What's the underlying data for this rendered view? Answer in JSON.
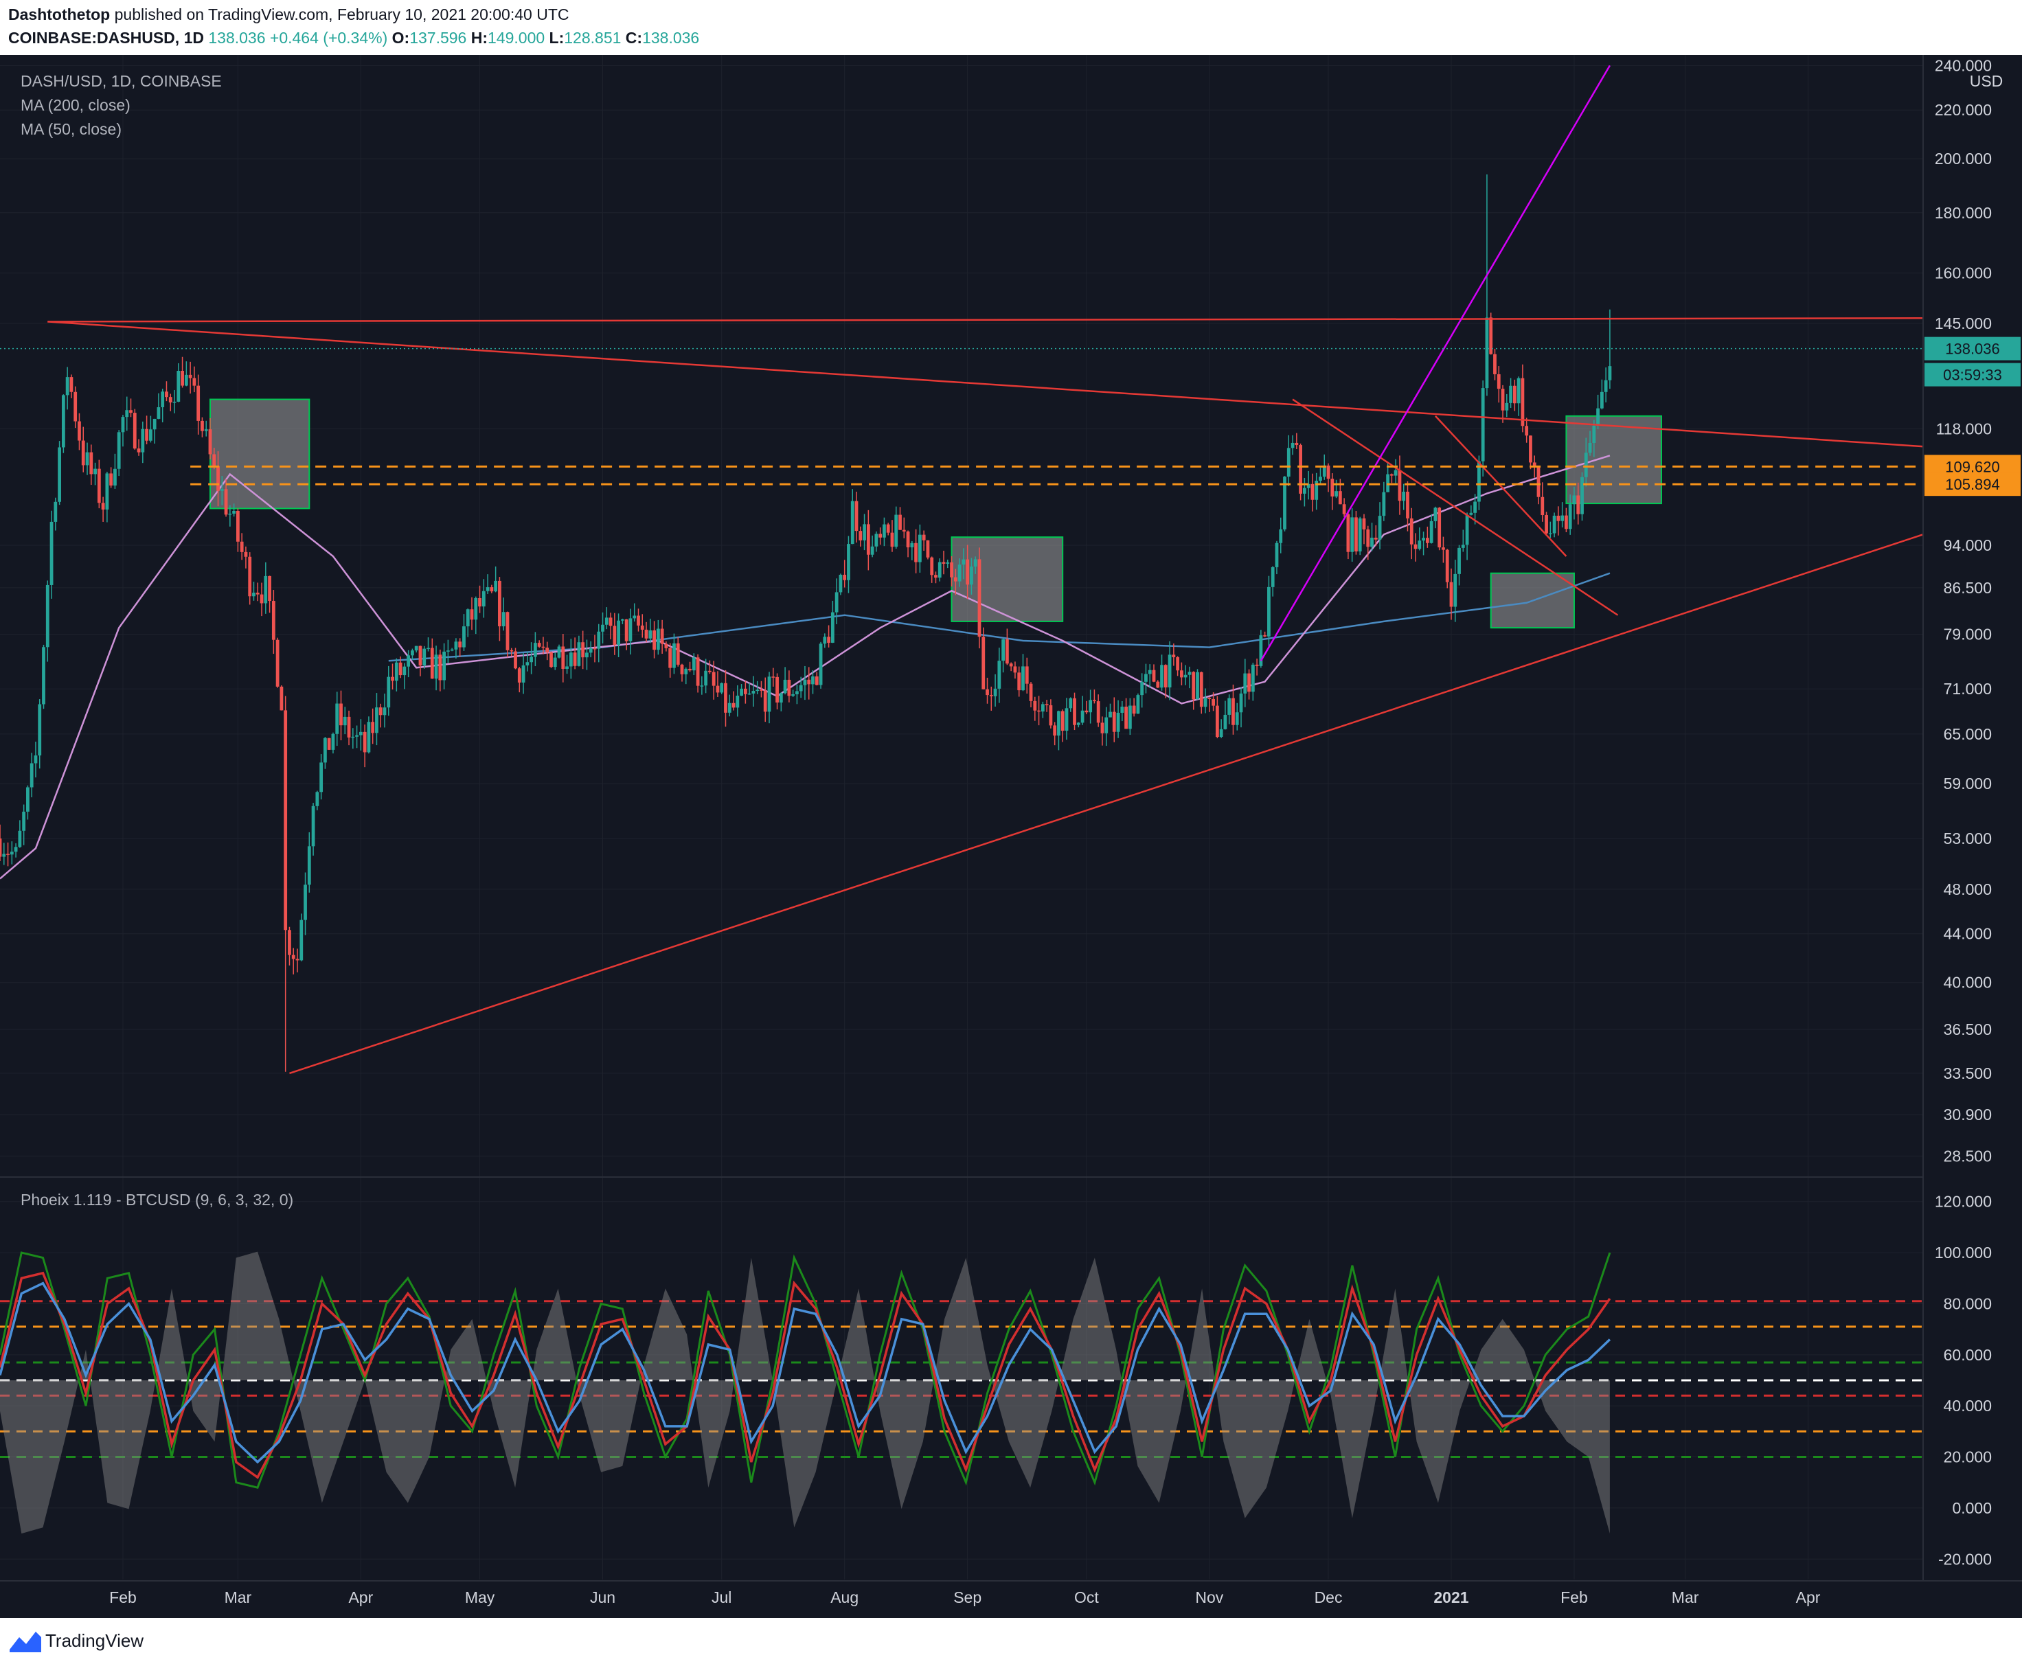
{
  "header": {
    "author": "Dashtothetop",
    "published": "published on TradingView.com, February 10, 2021 20:00:40 UTC",
    "symbol": "COINBASE:DASHUSD, 1D",
    "last": "138.036",
    "change": "+0.464 (+0.34%)",
    "open_label": "O:",
    "open": "137.596",
    "high_label": "H:",
    "high": "149.000",
    "low_label": "L:",
    "low": "128.851",
    "close_label": "C:",
    "close": "138.036"
  },
  "legend": {
    "title": "DASH/USD, 1D, COINBASE",
    "ma200": "MA (200, close)",
    "ma50": "MA (50, close)",
    "oscillator": "Phoeix 1.119 - BTCUSD (9, 6, 3, 32, 0)"
  },
  "price_tags": {
    "currency": "USD",
    "last": "138.036",
    "countdown": "03:59:33",
    "level_upper": "109.620",
    "level_lower": "105.894"
  },
  "footer": {
    "brand": "TradingView"
  },
  "colors": {
    "background": "#131722",
    "up": "#26a69a",
    "down": "#ef5350",
    "trendline": "#e53935",
    "fan_line": "#d500f9",
    "ma200": "#4a8bc2",
    "ma50": "#ce93d8",
    "level_dashed": "#f7931a",
    "box_border": "#00c853",
    "osc_green": "#1b8a1b",
    "osc_red": "#d32f2f",
    "osc_blue": "#4a90d9"
  },
  "chart_data": [
    {
      "type": "candlestick",
      "title": "DASH/USD, 1D, COINBASE",
      "y_scale": "log",
      "ylim": [
        27.5,
        245
      ],
      "x_ticks": [
        "Feb",
        "Mar",
        "Apr",
        "May",
        "Jun",
        "Jul",
        "Aug",
        "Sep",
        "Oct",
        "Nov",
        "Dec",
        "2021",
        "Feb",
        "Mar",
        "Apr"
      ],
      "x_range": [
        "2020-01-01",
        "2021-04-30"
      ],
      "y_ticks": [
        "240.000",
        "220.000",
        "200.000",
        "180.000",
        "160.000",
        "145.000",
        "118.000",
        "94.000",
        "86.500",
        "79.000",
        "71.000",
        "65.000",
        "59.000",
        "53.000",
        "48.000",
        "44.000",
        "40.000",
        "36.500",
        "33.500",
        "30.900",
        "28.500"
      ],
      "close_path": [
        [
          "2020-01-01",
          53
        ],
        [
          "2020-01-05",
          51
        ],
        [
          "2020-01-10",
          62
        ],
        [
          "2020-01-14",
          98
        ],
        [
          "2020-01-18",
          132
        ],
        [
          "2020-01-22",
          112
        ],
        [
          "2020-01-27",
          102
        ],
        [
          "2020-02-01",
          120
        ],
        [
          "2020-02-06",
          116
        ],
        [
          "2020-02-12",
          125
        ],
        [
          "2020-02-16",
          132
        ],
        [
          "2020-02-20",
          122
        ],
        [
          "2020-02-24",
          108
        ],
        [
          "2020-02-28",
          100
        ],
        [
          "2020-03-04",
          88
        ],
        [
          "2020-03-08",
          86
        ],
        [
          "2020-03-12",
          70
        ],
        [
          "2020-03-13",
          44
        ],
        [
          "2020-03-16",
          42
        ],
        [
          "2020-03-20",
          58
        ],
        [
          "2020-03-26",
          67
        ],
        [
          "2020-04-02",
          63
        ],
        [
          "2020-04-08",
          72
        ],
        [
          "2020-04-15",
          75
        ],
        [
          "2020-04-22",
          74
        ],
        [
          "2020-04-30",
          83
        ],
        [
          "2020-05-05",
          85
        ],
        [
          "2020-05-10",
          74
        ],
        [
          "2020-05-18",
          76
        ],
        [
          "2020-05-26",
          77
        ],
        [
          "2020-06-02",
          79
        ],
        [
          "2020-06-10",
          80
        ],
        [
          "2020-06-18",
          76
        ],
        [
          "2020-06-26",
          73
        ],
        [
          "2020-07-03",
          68
        ],
        [
          "2020-07-10",
          70
        ],
        [
          "2020-07-18",
          71
        ],
        [
          "2020-07-24",
          72
        ],
        [
          "2020-07-31",
          86
        ],
        [
          "2020-08-03",
          101
        ],
        [
          "2020-08-08",
          93
        ],
        [
          "2020-08-15",
          97
        ],
        [
          "2020-08-22",
          92
        ],
        [
          "2020-08-28",
          88
        ],
        [
          "2020-09-03",
          89
        ],
        [
          "2020-09-05",
          70
        ],
        [
          "2020-09-10",
          76
        ],
        [
          "2020-09-16",
          72
        ],
        [
          "2020-09-22",
          67
        ],
        [
          "2020-09-30",
          68
        ],
        [
          "2020-10-08",
          66
        ],
        [
          "2020-10-14",
          70
        ],
        [
          "2020-10-20",
          74
        ],
        [
          "2020-10-28",
          72
        ],
        [
          "2020-11-03",
          66
        ],
        [
          "2020-11-08",
          69
        ],
        [
          "2020-11-14",
          77
        ],
        [
          "2020-11-18",
          92
        ],
        [
          "2020-11-22",
          118
        ],
        [
          "2020-11-25",
          102
        ],
        [
          "2020-12-01",
          108
        ],
        [
          "2020-12-06",
          96
        ],
        [
          "2020-12-12",
          96
        ],
        [
          "2020-12-18",
          110
        ],
        [
          "2020-12-23",
          92
        ],
        [
          "2020-12-28",
          100
        ],
        [
          "2021-01-01",
          86
        ],
        [
          "2021-01-04",
          94
        ],
        [
          "2021-01-08",
          108
        ],
        [
          "2021-01-10",
          145
        ],
        [
          "2021-01-13",
          125
        ],
        [
          "2021-01-18",
          128
        ],
        [
          "2021-01-21",
          110
        ],
        [
          "2021-01-25",
          97
        ],
        [
          "2021-01-28",
          96
        ],
        [
          "2021-02-02",
          103
        ],
        [
          "2021-02-06",
          118
        ],
        [
          "2021-02-09",
          128
        ],
        [
          "2021-02-10",
          138.036
        ]
      ],
      "notable_wicks": [
        [
          "2020-03-13",
          33.6
        ],
        [
          "2021-01-10",
          194
        ],
        [
          "2021-02-10",
          149
        ]
      ],
      "ma_200": [
        [
          "2020-04-08",
          75
        ],
        [
          "2020-06-01",
          77
        ],
        [
          "2020-08-01",
          82
        ],
        [
          "2020-09-15",
          78
        ],
        [
          "2020-11-01",
          77
        ],
        [
          "2020-12-15",
          81
        ],
        [
          "2021-01-20",
          84
        ],
        [
          "2021-02-10",
          89
        ]
      ],
      "ma_50": [
        [
          "2020-01-01",
          49
        ],
        [
          "2020-01-10",
          52
        ],
        [
          "2020-01-31",
          80
        ],
        [
          "2020-02-28",
          108
        ],
        [
          "2020-03-25",
          92
        ],
        [
          "2020-04-15",
          74
        ],
        [
          "2020-05-15",
          76
        ],
        [
          "2020-06-15",
          78
        ],
        [
          "2020-07-15",
          70
        ],
        [
          "2020-08-10",
          80
        ],
        [
          "2020-08-28",
          86
        ],
        [
          "2020-09-25",
          78
        ],
        [
          "2020-10-25",
          69
        ],
        [
          "2020-11-15",
          72
        ],
        [
          "2020-12-15",
          96
        ],
        [
          "2021-01-10",
          104
        ],
        [
          "2021-02-10",
          112
        ]
      ],
      "trendlines": {
        "horizontal_resistance": [
          [
            "2020-01-13",
            145.5
          ],
          [
            "2021-04-30",
            146.5
          ]
        ],
        "falling_resistance": [
          [
            "2020-01-13",
            145.5
          ],
          [
            "2021-04-30",
            114
          ]
        ],
        "rising_support": [
          [
            "2020-03-14",
            33.5
          ],
          [
            "2021-04-30",
            96
          ]
        ],
        "descending_channel": [
          [
            "2020-11-22",
            125
          ],
          [
            "2021-02-12",
            82
          ]
        ],
        "descending_channel_2": [
          [
            "2020-12-28",
            121
          ],
          [
            "2021-01-30",
            92
          ]
        ],
        "fan_line": [
          [
            "2020-11-14",
            75
          ],
          [
            "2021-02-10",
            240
          ]
        ]
      },
      "levels": [
        109.62,
        105.894
      ],
      "boxes": [
        {
          "x": [
            "2020-02-23",
            "2020-03-19"
          ],
          "y": [
            101,
            125
          ]
        },
        {
          "x": [
            "2020-08-28",
            "2020-09-25"
          ],
          "y": [
            81,
            95.5
          ]
        },
        {
          "x": [
            "2021-01-11",
            "2021-02-01"
          ],
          "y": [
            80,
            89
          ]
        },
        {
          "x": [
            "2021-01-30",
            "2021-02-23"
          ],
          "y": [
            102,
            121
          ]
        }
      ],
      "last_price": 138.036,
      "currency": "USD"
    },
    {
      "type": "line",
      "title": "Phoeix 1.119 - BTCUSD (9, 6, 3, 32, 0)",
      "ylim": [
        -28,
        128
      ],
      "y_ticks": [
        "120.000",
        "100.000",
        "80.000",
        "60.000",
        "40.000",
        "20.000",
        "0.000",
        "-20.000"
      ],
      "levels": [
        {
          "value": 81,
          "color": "#d32f2f"
        },
        {
          "value": 71,
          "color": "#f7931a"
        },
        {
          "value": 57,
          "color": "#1b8a1b"
        },
        {
          "value": 50,
          "color": "#ffffff"
        },
        {
          "value": 44,
          "color": "#d32f2f"
        },
        {
          "value": 30,
          "color": "#f7931a"
        },
        {
          "value": 20,
          "color": "#1b8a1b"
        }
      ],
      "series": [
        {
          "name": "",
          "color": "#1b8a1b",
          "values": [
            60,
            100,
            98,
            70,
            40,
            90,
            92,
            60,
            20,
            60,
            70,
            10,
            8,
            30,
            60,
            90,
            70,
            50,
            80,
            90,
            75,
            40,
            30,
            60,
            85,
            40,
            20,
            55,
            80,
            78,
            45,
            20,
            35,
            85,
            60,
            10,
            50,
            98,
            80,
            50,
            20,
            60,
            92,
            70,
            30,
            10,
            45,
            70,
            85,
            60,
            30,
            10,
            40,
            78,
            90,
            60,
            20,
            70,
            95,
            85,
            60,
            30,
            55,
            95,
            60,
            20,
            70,
            90,
            60,
            40,
            30,
            40,
            60,
            70,
            75,
            100
          ]
        },
        {
          "name": "",
          "color": "#d32f2f",
          "values": [
            55,
            90,
            92,
            72,
            45,
            80,
            86,
            65,
            25,
            50,
            62,
            18,
            12,
            28,
            50,
            80,
            72,
            52,
            72,
            84,
            74,
            45,
            32,
            52,
            76,
            45,
            24,
            48,
            72,
            74,
            50,
            25,
            32,
            75,
            62,
            18,
            45,
            88,
            78,
            55,
            25,
            52,
            84,
            72,
            35,
            15,
            40,
            64,
            78,
            62,
            36,
            15,
            35,
            70,
            84,
            62,
            26,
            62,
            86,
            80,
            62,
            34,
            50,
            86,
            62,
            26,
            60,
            82,
            62,
            44,
            32,
            36,
            52,
            62,
            70,
            82
          ]
        },
        {
          "name": "",
          "color": "#4a90d9",
          "values": [
            52,
            84,
            88,
            74,
            52,
            72,
            80,
            66,
            34,
            44,
            56,
            26,
            18,
            26,
            42,
            70,
            72,
            58,
            66,
            78,
            74,
            52,
            38,
            46,
            66,
            50,
            30,
            42,
            64,
            70,
            54,
            32,
            32,
            64,
            62,
            26,
            40,
            78,
            76,
            60,
            32,
            44,
            74,
            72,
            42,
            22,
            36,
            56,
            70,
            62,
            42,
            22,
            32,
            62,
            78,
            64,
            34,
            54,
            76,
            76,
            62,
            40,
            46,
            76,
            64,
            34,
            52,
            74,
            64,
            48,
            36,
            36,
            46,
            54,
            58,
            66
          ]
        }
      ]
    }
  ]
}
